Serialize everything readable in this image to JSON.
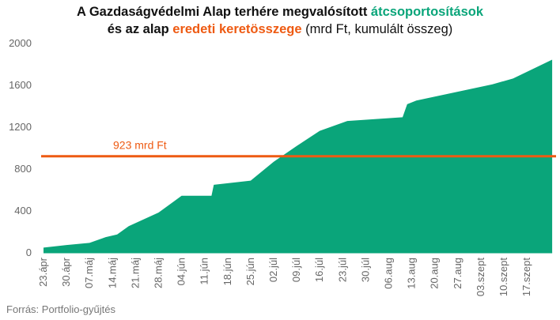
{
  "title": {
    "line1_prefix": "A Gazdaságvédelmi Alap terhére megvalósított ",
    "line1_highlight": "átcsoportosítások",
    "line2_prefix": "és az alap ",
    "line2_highlight": "eredeti keretösszege",
    "line2_suffix": " (mrd Ft, kumulált összeg)"
  },
  "source": "Forrás: Portfolio-gyűjtés",
  "colors": {
    "area": "#0aa57a",
    "reference": "#ee5a12"
  },
  "chart_data": {
    "type": "area",
    "categories": [
      "23.ápr",
      "30.ápr",
      "07.máj",
      "14.máj",
      "21.máj",
      "28.máj",
      "04.jún",
      "11.jún",
      "18.jún",
      "25.jún",
      "02.júl",
      "09.júl",
      "16.júl",
      "23.júl",
      "30.júl",
      "06.aug",
      "13.aug",
      "20.aug",
      "27.aug",
      "03.szept",
      "10.szept",
      "17.szept"
    ],
    "points": [
      {
        "x": 0,
        "y": 50
      },
      {
        "x": 1,
        "y": 75
      },
      {
        "x": 2,
        "y": 95
      },
      {
        "x": 2.7,
        "y": 150
      },
      {
        "x": 3.2,
        "y": 175
      },
      {
        "x": 3.7,
        "y": 255
      },
      {
        "x": 5,
        "y": 385
      },
      {
        "x": 6,
        "y": 545
      },
      {
        "x": 7.3,
        "y": 545
      },
      {
        "x": 7.4,
        "y": 650
      },
      {
        "x": 9,
        "y": 690
      },
      {
        "x": 10,
        "y": 870
      },
      {
        "x": 11,
        "y": 1020
      },
      {
        "x": 12,
        "y": 1165
      },
      {
        "x": 13.2,
        "y": 1260
      },
      {
        "x": 15.6,
        "y": 1295
      },
      {
        "x": 15.8,
        "y": 1420
      },
      {
        "x": 16.2,
        "y": 1455
      },
      {
        "x": 19.5,
        "y": 1610
      },
      {
        "x": 20.4,
        "y": 1665
      },
      {
        "x": 22.1,
        "y": 1845
      }
    ],
    "reference_line": {
      "value": 923,
      "label": "923 mrd Ft"
    },
    "yticks": [
      0,
      400,
      800,
      1200,
      1600,
      2000
    ],
    "ylim": [
      0,
      2000
    ],
    "grid": false
  }
}
